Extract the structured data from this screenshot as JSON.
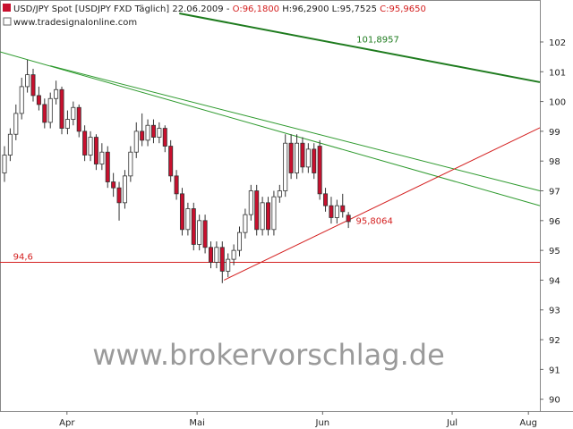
{
  "chart_data": {
    "type": "candlestick",
    "title": "USD/JPY Spot [USDJPY FXD  Täglich] 22.06.2009 -",
    "open_label": "O:96,1800",
    "high_label": "H:96,2900",
    "low_label": "L:95,7525",
    "close_label": "C:95,9650",
    "subtitle": "www.tradesignalonline.com",
    "watermark": "www.brokervorschlag.de",
    "up_color": "#ffffff",
    "down_color": "#c8102e",
    "open": [
      97.6,
      98.2,
      98.9,
      99.6,
      100.5,
      100.9,
      100.2,
      99.9,
      99.3,
      100.1,
      100.4,
      99.1,
      99.4,
      99.8,
      99.0,
      98.2,
      98.8,
      97.9,
      98.3,
      97.3,
      97.1,
      96.6,
      97.5,
      98.3,
      99.0,
      98.7,
      99.2,
      98.8,
      99.1,
      98.5,
      97.5,
      96.9,
      95.7,
      96.4,
      95.2,
      96.0,
      95.1,
      94.6,
      95.1,
      94.3,
      94.7,
      95.0,
      95.6,
      96.2,
      97.0,
      95.7,
      96.6,
      95.7,
      96.8,
      97.0,
      98.6,
      97.6,
      98.6,
      97.8,
      98.4,
      98.5,
      96.9,
      96.5,
      96.1,
      96.5,
      96.18
    ],
    "high": [
      98.5,
      99.1,
      99.9,
      100.8,
      101.4,
      101.1,
      100.5,
      100.1,
      100.3,
      100.7,
      100.5,
      99.7,
      100.0,
      99.9,
      99.2,
      99.0,
      98.9,
      98.6,
      98.5,
      97.6,
      97.3,
      97.7,
      98.5,
      99.3,
      99.6,
      99.4,
      99.4,
      99.3,
      99.2,
      98.7,
      97.7,
      97.1,
      96.6,
      96.6,
      96.2,
      96.2,
      95.3,
      95.3,
      95.3,
      94.9,
      95.2,
      95.8,
      96.4,
      97.2,
      97.2,
      96.8,
      96.8,
      97.0,
      97.2,
      98.9,
      98.9,
      98.9,
      98.8,
      98.6,
      98.6,
      98.7,
      97.1,
      96.8,
      96.7,
      96.9,
      96.29
    ],
    "low": [
      97.3,
      98.0,
      98.7,
      99.4,
      100.3,
      100.0,
      99.7,
      99.1,
      99.1,
      99.9,
      98.9,
      98.9,
      99.2,
      98.8,
      98.0,
      98.0,
      97.7,
      97.7,
      97.1,
      96.8,
      96.0,
      96.4,
      97.3,
      98.1,
      98.5,
      98.5,
      98.6,
      98.6,
      98.3,
      97.3,
      96.7,
      95.5,
      95.5,
      95.0,
      95.0,
      94.9,
      94.4,
      94.4,
      93.9,
      94.1,
      94.5,
      94.8,
      95.4,
      96.0,
      95.5,
      95.5,
      95.5,
      95.5,
      96.6,
      96.8,
      97.4,
      97.4,
      97.6,
      97.6,
      97.4,
      96.7,
      96.3,
      95.9,
      95.9,
      96.1,
      95.7525
    ],
    "close": [
      98.2,
      98.9,
      99.6,
      100.5,
      100.9,
      100.2,
      99.9,
      99.3,
      100.1,
      100.4,
      99.1,
      99.4,
      99.8,
      99.0,
      98.2,
      98.8,
      97.9,
      98.3,
      97.3,
      97.1,
      96.6,
      97.5,
      98.3,
      99.0,
      98.7,
      99.2,
      98.8,
      99.1,
      98.5,
      97.5,
      96.9,
      95.7,
      96.4,
      95.2,
      96.0,
      95.1,
      94.6,
      95.1,
      94.3,
      94.7,
      95.0,
      95.6,
      96.2,
      97.0,
      95.7,
      96.6,
      95.7,
      96.8,
      97.0,
      98.6,
      97.6,
      98.6,
      97.8,
      98.4,
      97.6,
      96.9,
      96.5,
      96.1,
      96.5,
      96.3,
      95.965
    ],
    "xlim": [
      -0.78,
      93.4
    ],
    "xticks": [
      {
        "value": 10.9,
        "label": "Apr"
      },
      {
        "value": 33.6,
        "label": "Mai"
      },
      {
        "value": 55.5,
        "label": "Jun"
      },
      {
        "value": 78.1,
        "label": "Jul"
      },
      {
        "value": 91.4,
        "label": "Aug"
      }
    ],
    "ylim": [
      89.6,
      103.35
    ],
    "yticks": [
      90,
      91,
      92,
      93,
      94,
      95,
      96,
      97,
      98,
      99,
      100,
      101,
      102
    ],
    "trendlines": [
      {
        "color": "#1e7b1e",
        "width": 2,
        "x": [
          30.5,
          93.4
        ],
        "y": [
          102.96,
          100.65
        ]
      },
      {
        "color": "#2e9a2e",
        "width": 1,
        "x": [
          -0.78,
          93.4
        ],
        "y": [
          101.67,
          96.5
        ]
      },
      {
        "color": "#2e9a2e",
        "width": 1,
        "x": [
          8,
          93.4
        ],
        "y": [
          101.2,
          97.0
        ]
      },
      {
        "color": "#d42020",
        "width": 1,
        "x": [
          38.3,
          93.4
        ],
        "y": [
          94.0,
          99.12
        ]
      },
      {
        "color": "#d42020",
        "width": 1,
        "x": [
          -0.78,
          93.4
        ],
        "y": [
          94.6,
          94.6
        ]
      }
    ],
    "annotations": [
      {
        "label": "101,8957",
        "value": 101.8957,
        "x": 61.4,
        "color": "#1e7b1e"
      },
      {
        "label": "95,8064",
        "value": 95.8064,
        "x": 61.3,
        "color": "#d42020"
      },
      {
        "label": "94,6",
        "value": 94.6,
        "x": 1.5,
        "color": "#d42020"
      }
    ]
  }
}
